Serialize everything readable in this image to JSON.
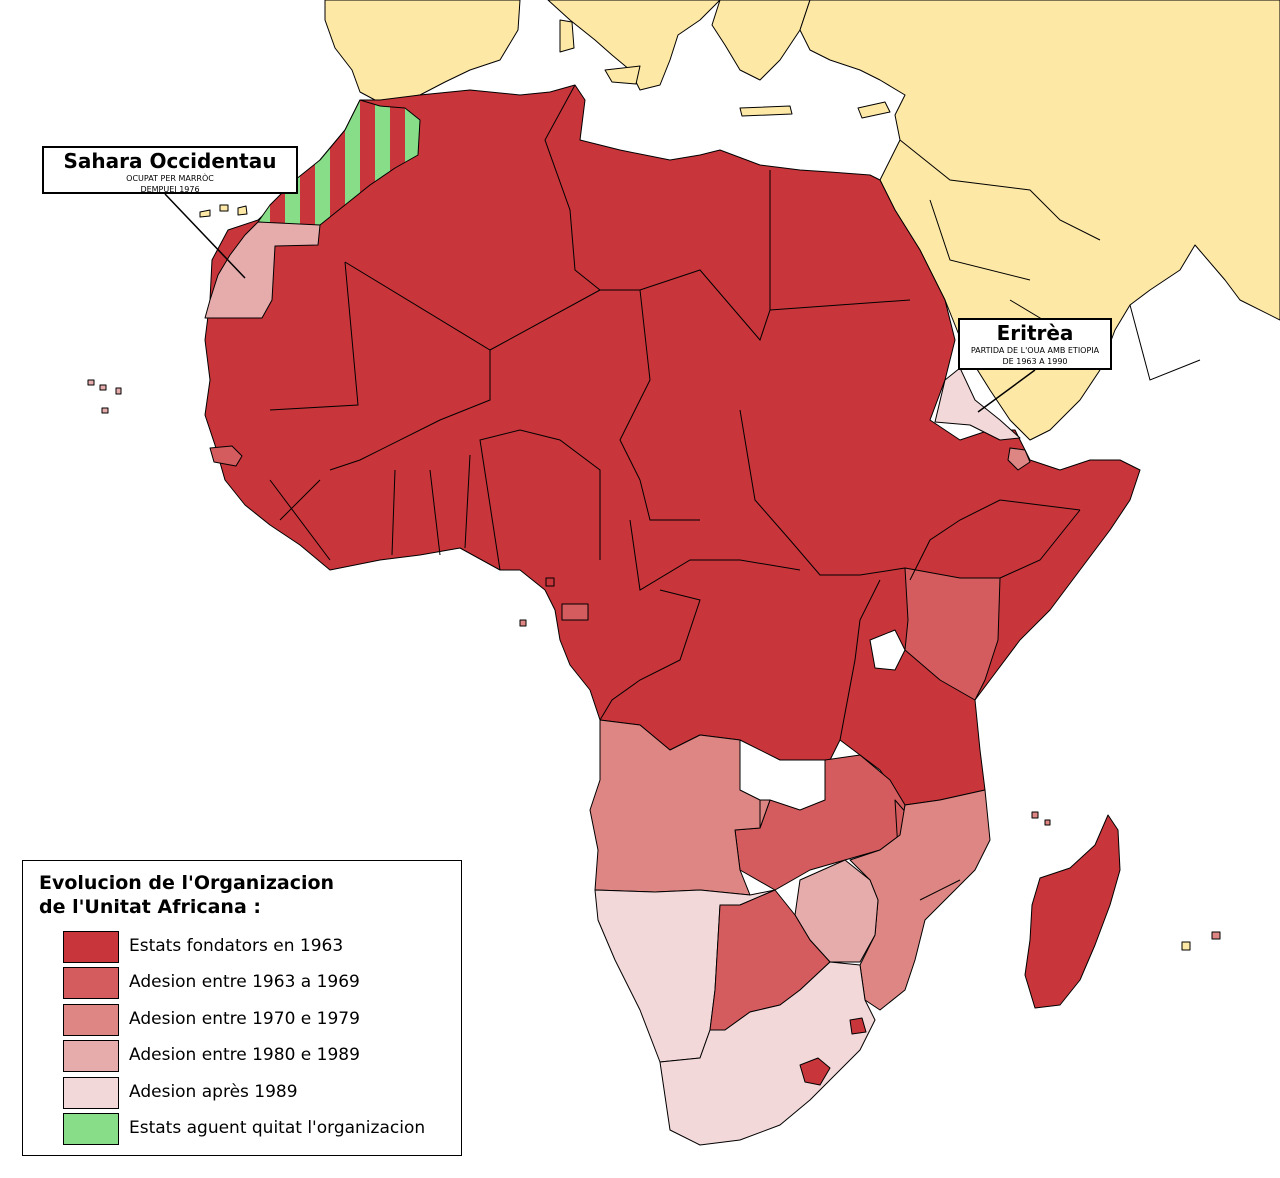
{
  "colors": {
    "founder": "#c8353a",
    "adh_1963_1969": "#d55c5e",
    "adh_1970_1979": "#dd8684",
    "adh_1980_1989": "#e6acac",
    "adh_after_1989": "#f2d8d9",
    "left_org": "#88dd88",
    "non_african": "#fde8a6",
    "water": "#ffffff"
  },
  "callouts": {
    "western_sahara": {
      "title": "Sahara Occidentau",
      "line1": "OCUPAT PER MARRÒC",
      "line2": "DEMPUEI 1976"
    },
    "eritrea": {
      "title": "Eritrèa",
      "line1": "PARTIDA DE L'OUA AMB ETIOPIA",
      "line2": "DE 1963 A 1990"
    }
  },
  "legend": {
    "title_line1": "Evolucion de l'Organizacion",
    "title_line2": "de l'Unitat Africana :",
    "items": [
      {
        "label": "Estats fondators en 1963",
        "color": "#c8353a"
      },
      {
        "label": "Adesion entre 1963 a 1969",
        "color": "#d55c5e"
      },
      {
        "label": "Adesion entre 1970 e 1979",
        "color": "#dd8684"
      },
      {
        "label": "Adesion entre 1980 e 1989",
        "color": "#e6acac"
      },
      {
        "label": "Adesion après 1989",
        "color": "#f2d8d9"
      },
      {
        "label": "Estats aguent quitat l'organizacion",
        "color": "#88dd88"
      }
    ]
  }
}
